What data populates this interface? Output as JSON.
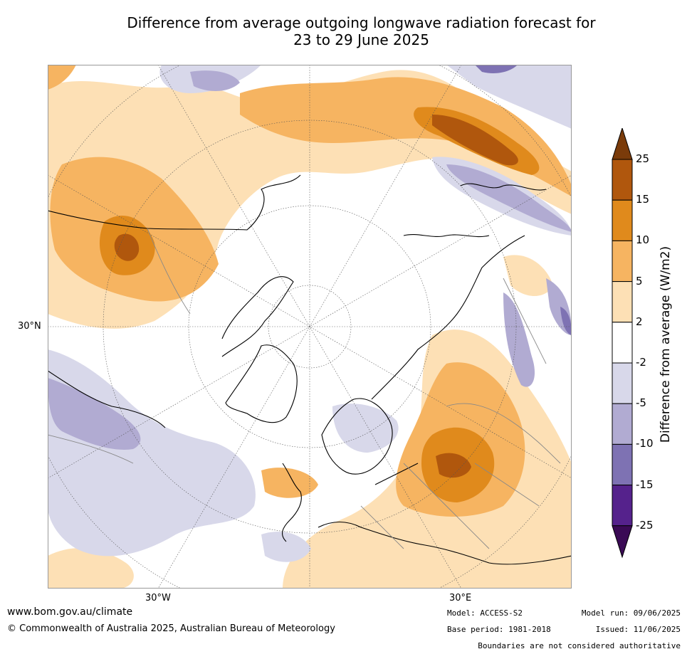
{
  "title_line1": "Difference from average outgoing longwave radiation forecast for",
  "title_line2": "23 to 29 June 2025",
  "lat_label": "30°N",
  "lon_labels": [
    "30°W",
    "30°E"
  ],
  "colorbar": {
    "label": "Difference from average (W/m2)",
    "ticks": [
      "25",
      "15",
      "10",
      "5",
      "2",
      "-2",
      "-5",
      "-10",
      "-15",
      "-25"
    ],
    "colors": [
      "#7a3b0a",
      "#b0570d",
      "#e08a1c",
      "#f6b461",
      "#fde0b5",
      "#ffffff",
      "#d8d8ea",
      "#b1abd2",
      "#7e72b3",
      "#55228c",
      "#3a0a55"
    ]
  },
  "footer": {
    "website": "www.bom.gov.au/climate",
    "copyright": "© Commonwealth of Australia 2025, Australian Bureau of Meteorology",
    "model": "Model: ACCESS-S2",
    "base_period": "Base period: 1981-2018",
    "model_run": "Model run: 09/06/2025",
    "issued": "Issued: 11/06/2025",
    "boundaries": "Boundaries are not considered authoritative"
  }
}
